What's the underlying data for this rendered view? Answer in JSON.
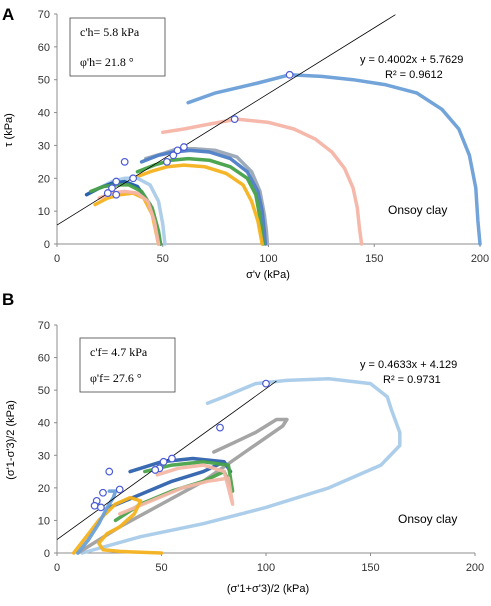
{
  "figure": {
    "panels": [
      "A",
      "B"
    ]
  },
  "chart_data": [
    {
      "type": "line",
      "panel": "A",
      "ylabel": "τ (kPa)",
      "xlabel": "σ'v (kPa)",
      "xlim": [
        0,
        200
      ],
      "ylim": [
        0,
        70
      ],
      "x_ticks": [
        "0",
        "50",
        "100",
        "150",
        "200"
      ],
      "y_ticks": [
        "0",
        "10",
        "20",
        "30",
        "40",
        "50",
        "60",
        "70"
      ],
      "box": {
        "c": "c'h= 5.8 kPa",
        "phi": "φ'h= 21.8 °"
      },
      "fit": {
        "equation": "y = 0.4002x + 5.7629",
        "r2": "R² = 0.9612",
        "slope": 0.4002,
        "intercept": 5.7629,
        "x_range": [
          0,
          160
        ]
      },
      "annotation": "Onsoy clay",
      "series": [
        {
          "color": "#6a9fd8",
          "x": [
            62,
            75,
            95,
            110,
            125,
            140,
            155,
            170,
            182,
            190,
            195,
            198,
            199,
            200
          ],
          "y": [
            43,
            46,
            49,
            51.5,
            51,
            50,
            48.5,
            46,
            41,
            35,
            27,
            17,
            7,
            0
          ]
        },
        {
          "color": "#f4b4a5",
          "x": [
            50,
            60,
            72,
            85,
            100,
            112,
            122,
            130,
            136,
            140,
            142,
            143,
            144
          ],
          "y": [
            34,
            35,
            36.5,
            38,
            37,
            35,
            32,
            28,
            23,
            17,
            11,
            5,
            0
          ]
        },
        {
          "color": "#9aa6b6",
          "x": [
            42,
            50,
            57,
            65,
            75,
            85,
            92,
            96,
            98,
            99,
            99.5
          ],
          "y": [
            26,
            27.5,
            29,
            29,
            28.5,
            26.5,
            22,
            16,
            9,
            4,
            0
          ]
        },
        {
          "color": "#4f7ec6",
          "x": [
            40,
            48,
            55,
            63,
            72,
            82,
            90,
            95,
            97,
            98,
            98.5
          ],
          "y": [
            25,
            27,
            28,
            28.5,
            28,
            26,
            22,
            16,
            10,
            4,
            0
          ]
        },
        {
          "color": "#45a148",
          "x": [
            38,
            46,
            54,
            62,
            72,
            82,
            90,
            94,
            96,
            97.5
          ],
          "y": [
            22,
            24,
            25.5,
            26,
            25.5,
            23.5,
            20,
            15,
            8,
            0
          ]
        },
        {
          "color": "#f5b21e",
          "x": [
            36,
            44,
            52,
            60,
            70,
            80,
            88,
            92,
            95,
            97
          ],
          "y": [
            20,
            22,
            23.5,
            24,
            23.5,
            21.5,
            18,
            13,
            7,
            0
          ]
        },
        {
          "color": "#aacbe8",
          "x": [
            20,
            26,
            32,
            38,
            44,
            48,
            50,
            51
          ],
          "y": [
            17,
            19,
            20,
            20,
            18,
            13,
            6,
            0
          ]
        },
        {
          "color": "#1c5aa8",
          "x": [
            14,
            20,
            26,
            32,
            38,
            44,
            47,
            49
          ],
          "y": [
            15,
            17,
            18.5,
            19,
            17.5,
            12,
            5,
            0
          ]
        },
        {
          "color": "#4aa24a",
          "x": [
            16,
            22,
            28,
            34,
            40,
            45,
            48,
            49
          ],
          "y": [
            16,
            17.5,
            18,
            18,
            16,
            11,
            4,
            0
          ]
        },
        {
          "color": "#f5b21e",
          "x": [
            18,
            24,
            30,
            36,
            41,
            45,
            47,
            48
          ],
          "y": [
            12,
            14,
            15,
            15.5,
            14,
            9,
            3,
            0
          ]
        },
        {
          "color": "#f4b4a5",
          "x": [
            20,
            26,
            32,
            38,
            43,
            46,
            48
          ],
          "y": [
            14,
            15.5,
            16,
            15.5,
            13,
            7,
            0
          ]
        }
      ],
      "points": [
        {
          "x": 110,
          "y": 51.5
        },
        {
          "x": 84,
          "y": 38
        },
        {
          "x": 60,
          "y": 29.5
        },
        {
          "x": 57,
          "y": 28.5
        },
        {
          "x": 55,
          "y": 27
        },
        {
          "x": 52,
          "y": 25
        },
        {
          "x": 32,
          "y": 25
        },
        {
          "x": 36,
          "y": 20
        },
        {
          "x": 28,
          "y": 19
        },
        {
          "x": 26,
          "y": 17
        },
        {
          "x": 24,
          "y": 15.5
        },
        {
          "x": 28,
          "y": 15
        }
      ]
    },
    {
      "type": "line",
      "panel": "B",
      "ylabel": "(σ'1-σ'3)/2 (kPa)",
      "xlabel": "(σ'1+σ'3)/2 (kPa)",
      "xlim": [
        0,
        200
      ],
      "ylim": [
        0,
        70
      ],
      "x_ticks": [
        "0",
        "50",
        "100",
        "150",
        "200"
      ],
      "y_ticks": [
        "0",
        "10",
        "20",
        "30",
        "40",
        "50",
        "60",
        "70"
      ],
      "box": {
        "c": "c'f= 4.7 kPa",
        "phi": "φ'f= 27.6 °"
      },
      "fit": {
        "equation": "y = 0.4633x + 4.129",
        "r2": "R² = 0.9731",
        "slope": 0.4633,
        "intercept": 4.129,
        "x_range": [
          0,
          105
        ]
      },
      "annotation": "Onsoy clay",
      "series": [
        {
          "color": "#a9cbe9",
          "x": [
            12,
            40,
            70,
            100,
            130,
            155,
            164,
            164,
            160,
            158,
            150,
            130,
            110,
            95,
            80,
            72
          ],
          "y": [
            0,
            5,
            9,
            14,
            20,
            27,
            33,
            37,
            44,
            48,
            52,
            53.5,
            53,
            52,
            48,
            46
          ]
        },
        {
          "color": "#a0a0a0",
          "x": [
            10,
            30,
            50,
            70,
            90,
            108,
            110,
            105,
            95,
            85,
            75
          ],
          "y": [
            0,
            8,
            15,
            22,
            31,
            39,
            41,
            41,
            37,
            34,
            31
          ]
        },
        {
          "color": "#2f62ad",
          "x": [
            25,
            40,
            55,
            70,
            80,
            83,
            80,
            65,
            50,
            40,
            35
          ],
          "y": [
            14,
            18,
            22,
            25,
            28,
            25,
            28,
            29,
            28,
            26,
            25
          ]
        },
        {
          "color": "#49a34a",
          "x": [
            28,
            40,
            55,
            70,
            80,
            84,
            82,
            70,
            55,
            42
          ],
          "y": [
            10,
            15,
            19,
            22,
            25,
            19,
            27,
            28,
            27,
            25
          ]
        },
        {
          "color": "#f4b7a6",
          "x": [
            30,
            45,
            60,
            72,
            82,
            84,
            80,
            70,
            58,
            48
          ],
          "y": [
            12,
            16,
            20,
            22,
            23,
            15,
            25,
            27,
            26,
            24
          ]
        },
        {
          "color": "#f5b21e",
          "x": [
            8,
            14,
            20,
            28,
            35,
            40,
            37,
            30,
            24,
            20,
            22,
            30,
            40,
            50
          ],
          "y": [
            0,
            5,
            10,
            15,
            17,
            16,
            12,
            8,
            6,
            3,
            1,
            0.5,
            0.2,
            0
          ]
        },
        {
          "color": "#6aa0d8",
          "x": [
            10,
            15,
            20,
            24,
            27,
            28,
            25
          ],
          "y": [
            0,
            4,
            9,
            14,
            17,
            19,
            19
          ]
        }
      ],
      "points": [
        {
          "x": 100,
          "y": 52
        },
        {
          "x": 78,
          "y": 38.5
        },
        {
          "x": 55,
          "y": 29
        },
        {
          "x": 51,
          "y": 28
        },
        {
          "x": 49,
          "y": 26
        },
        {
          "x": 47,
          "y": 25.5
        },
        {
          "x": 25,
          "y": 25
        },
        {
          "x": 30,
          "y": 19.5
        },
        {
          "x": 22,
          "y": 18.5
        },
        {
          "x": 19,
          "y": 16
        },
        {
          "x": 18,
          "y": 14.5
        },
        {
          "x": 21,
          "y": 14
        }
      ]
    }
  ]
}
